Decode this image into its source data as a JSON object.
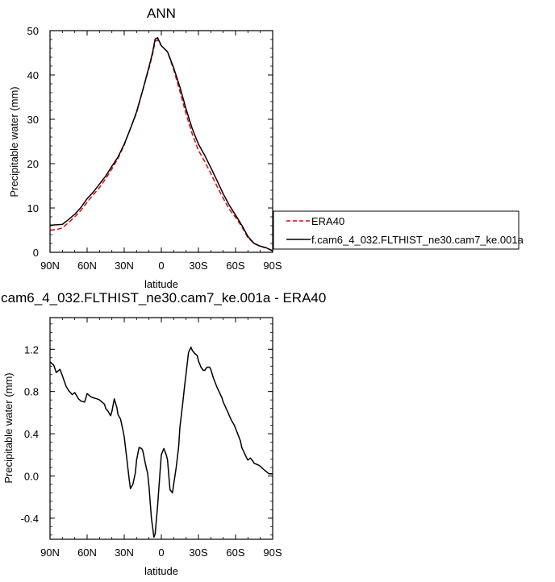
{
  "chart_data": [
    {
      "type": "line",
      "title": "ANN",
      "xlabel": "latitude",
      "ylabel": "Precipitable water (mm)",
      "xlim": [
        90,
        -90
      ],
      "ylim": [
        0,
        50
      ],
      "x_ticks": [
        {
          "value": 90,
          "label": "90N"
        },
        {
          "value": 60,
          "label": "60N"
        },
        {
          "value": 30,
          "label": "30N"
        },
        {
          "value": 0,
          "label": "0"
        },
        {
          "value": -30,
          "label": "30S"
        },
        {
          "value": -60,
          "label": "60S"
        },
        {
          "value": -90,
          "label": "90S"
        }
      ],
      "y_ticks": [
        {
          "value": 0,
          "label": "0"
        },
        {
          "value": 10,
          "label": "10"
        },
        {
          "value": 20,
          "label": "20"
        },
        {
          "value": 30,
          "label": "30"
        },
        {
          "value": 40,
          "label": "40"
        },
        {
          "value": 50,
          "label": "50"
        }
      ],
      "legend_position": "right",
      "series": [
        {
          "name": "ERA40",
          "color": "#e8000b",
          "dash": "dashed",
          "x": [
            90,
            85,
            80,
            75,
            70,
            65,
            60,
            55,
            50,
            45,
            40,
            35,
            30,
            25,
            20,
            15,
            10,
            7,
            5,
            3,
            0,
            -5,
            -10,
            -15,
            -20,
            -25,
            -30,
            -35,
            -40,
            -45,
            -50,
            -55,
            -60,
            -65,
            -70,
            -75,
            -80,
            -85,
            -90
          ],
          "y": [
            5.0,
            5.1,
            5.5,
            6.7,
            8.0,
            9.5,
            11.3,
            13.0,
            14.6,
            16.6,
            18.8,
            21.2,
            24.2,
            28.0,
            31.4,
            36.6,
            41.5,
            44.8,
            47.6,
            47.9,
            46.6,
            45.2,
            41.2,
            36.3,
            31.2,
            26.7,
            23.0,
            20.5,
            17.8,
            14.9,
            12.2,
            9.7,
            7.9,
            5.8,
            3.3,
            2.0,
            1.3,
            1.0,
            0.4
          ]
        },
        {
          "name": "f.cam6_4_032.FLTHIST_ne30.cam7_ke.001a",
          "color": "#000000",
          "dash": "solid",
          "x": [
            90,
            85,
            80,
            75,
            70,
            65,
            60,
            55,
            50,
            45,
            40,
            35,
            30,
            25,
            20,
            15,
            10,
            7,
            5,
            3,
            0,
            -5,
            -10,
            -15,
            -20,
            -25,
            -30,
            -35,
            -40,
            -45,
            -50,
            -55,
            -60,
            -65,
            -70,
            -75,
            -80,
            -85,
            -90
          ],
          "y": [
            6.1,
            6.2,
            6.3,
            7.4,
            8.6,
            10.1,
            12.1,
            13.6,
            15.4,
            17.2,
            19.4,
            21.5,
            24.4,
            27.9,
            31.7,
            36.6,
            41.8,
            45.2,
            48.1,
            48.4,
            46.6,
            45.2,
            41.6,
            37.3,
            32.3,
            27.9,
            24.4,
            21.9,
            19.1,
            16.2,
            13.2,
            10.6,
            8.4,
            6.1,
            3.6,
            2.0,
            1.4,
            1.0,
            0.3
          ]
        }
      ]
    },
    {
      "type": "line",
      "title": "f.cam6_4_032.FLTHIST_ne30.cam7_ke.001a - ERA40",
      "xlabel": "latitude",
      "ylabel": "Precipitable water (mm)",
      "xlim": [
        90,
        -90
      ],
      "ylim": [
        -0.6,
        1.5
      ],
      "x_ticks": [
        {
          "value": 90,
          "label": "90N"
        },
        {
          "value": 60,
          "label": "60N"
        },
        {
          "value": 30,
          "label": "30N"
        },
        {
          "value": 0,
          "label": "0"
        },
        {
          "value": -30,
          "label": "30S"
        },
        {
          "value": -60,
          "label": "60S"
        },
        {
          "value": -90,
          "label": "90S"
        }
      ],
      "y_ticks": [
        {
          "value": -0.4,
          "label": "-0.4"
        },
        {
          "value": 0.0,
          "label": "0.0"
        },
        {
          "value": 0.4,
          "label": "0.4"
        },
        {
          "value": 0.8,
          "label": "0.8"
        },
        {
          "value": 1.2,
          "label": "1.2"
        }
      ],
      "series": [
        {
          "name": "",
          "color": "#000000",
          "dash": "solid",
          "x": [
            90,
            87,
            85,
            82,
            80,
            77,
            75,
            72,
            70,
            67,
            65,
            62,
            60,
            57,
            55,
            52,
            50,
            48,
            46,
            45,
            43,
            41,
            40,
            38,
            36,
            35,
            33,
            31,
            30,
            28,
            26,
            25,
            23,
            21,
            20,
            18,
            16,
            15,
            13,
            11,
            10,
            8,
            6,
            5,
            3,
            1,
            0,
            -2,
            -4,
            -5,
            -7,
            -9,
            -10,
            -12,
            -14,
            -15,
            -17,
            -19,
            -20,
            -22,
            -24,
            -25,
            -27,
            -29,
            -30,
            -32,
            -34,
            -35,
            -37,
            -39,
            -40,
            -42,
            -44,
            -45,
            -47,
            -49,
            -50,
            -52,
            -54,
            -55,
            -57,
            -59,
            -60,
            -62,
            -64,
            -65,
            -67,
            -69,
            -70,
            -72,
            -74,
            -75,
            -77,
            -79,
            -80,
            -82,
            -84,
            -85,
            -87,
            -90
          ],
          "y": [
            1.08,
            1.05,
            0.98,
            1.01,
            0.95,
            0.85,
            0.81,
            0.77,
            0.79,
            0.73,
            0.71,
            0.7,
            0.78,
            0.75,
            0.74,
            0.73,
            0.72,
            0.7,
            0.68,
            0.64,
            0.61,
            0.57,
            0.61,
            0.73,
            0.65,
            0.58,
            0.54,
            0.43,
            0.37,
            0.17,
            -0.03,
            -0.12,
            -0.08,
            0.03,
            0.15,
            0.27,
            0.26,
            0.24,
            0.12,
            0.02,
            -0.1,
            -0.4,
            -0.58,
            -0.55,
            -0.28,
            0.05,
            0.2,
            0.26,
            0.2,
            0.15,
            -0.13,
            -0.16,
            -0.08,
            0.08,
            0.28,
            0.46,
            0.66,
            0.87,
            0.97,
            1.17,
            1.22,
            1.19,
            1.16,
            1.14,
            1.09,
            1.03,
            1.0,
            1.0,
            1.03,
            1.03,
            1.01,
            0.93,
            0.87,
            0.84,
            0.79,
            0.74,
            0.7,
            0.65,
            0.6,
            0.57,
            0.52,
            0.48,
            0.45,
            0.39,
            0.33,
            0.27,
            0.22,
            0.17,
            0.15,
            0.17,
            0.14,
            0.12,
            0.11,
            0.1,
            0.09,
            0.07,
            0.05,
            0.04,
            0.02,
            0.02
          ]
        }
      ]
    }
  ]
}
